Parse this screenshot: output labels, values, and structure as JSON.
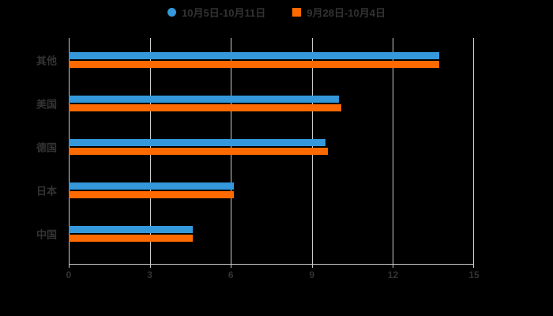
{
  "background_color": "#000000",
  "text_color": "#333333",
  "grid_color": "#cccccc",
  "legend": {
    "items": [
      {
        "label": "10月5日-10月11日",
        "marker": "circle",
        "color": "#3498db"
      },
      {
        "label": "9月28日-10月4日",
        "marker": "square",
        "color": "#ff6a00"
      }
    ]
  },
  "chart_data": {
    "type": "bar",
    "orientation": "horizontal",
    "title": "",
    "xlabel": "",
    "ylabel": "",
    "categories": [
      "其他",
      "美国",
      "德国",
      "日本",
      "中国"
    ],
    "series": [
      {
        "name": "10月5日-10月11日",
        "color": "#3498db",
        "values": [
          13.7,
          10.0,
          9.5,
          6.1,
          4.6
        ]
      },
      {
        "name": "9月28日-10月4日",
        "color": "#ff6a00",
        "values": [
          13.7,
          10.1,
          9.6,
          6.1,
          4.6
        ]
      }
    ],
    "xlim": [
      0,
      15
    ],
    "xticks": [
      0,
      3,
      6,
      9,
      12,
      15
    ],
    "grid": true,
    "legend_position": "top"
  }
}
